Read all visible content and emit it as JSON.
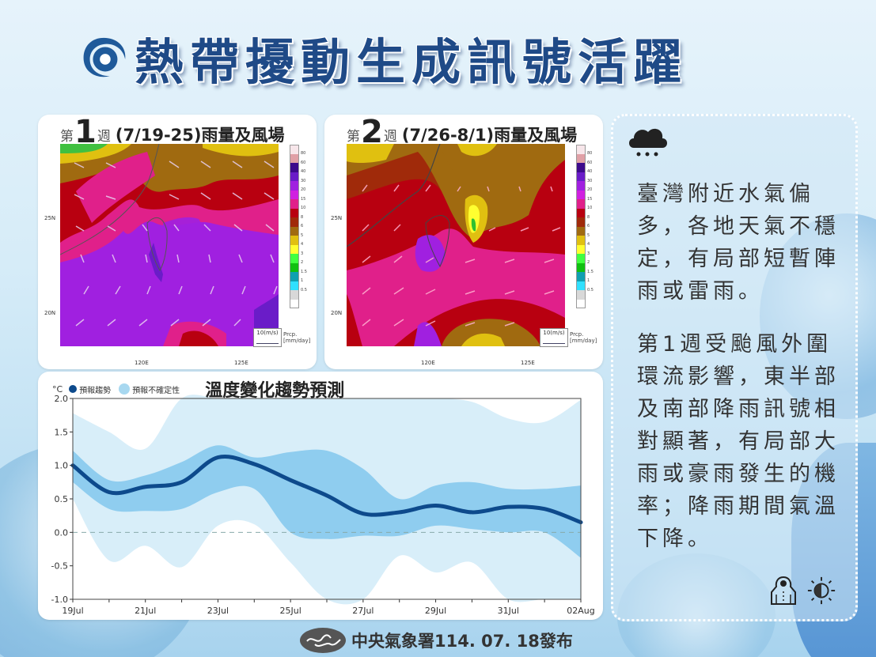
{
  "header": {
    "title": "熱帶擾動生成訊號活躍",
    "logo_icon": "typhoon-icon",
    "title_color": "#1f4a87"
  },
  "maps": [
    {
      "prefix": "第",
      "week_number": "1",
      "suffix": "週",
      "date_range": "(7/19-25)雨量及風場",
      "lat_labels": [
        "25N",
        "20N"
      ],
      "lon_labels": [
        "120E",
        "125E"
      ],
      "wind_reference": "10(m/s)",
      "colorbar_label_line1": "Prcp.",
      "colorbar_label_line2": "[mm/day]"
    },
    {
      "prefix": "第",
      "week_number": "2",
      "suffix": "週",
      "date_range": "(7/26-8/1)雨量及風場",
      "lat_labels": [
        "25N",
        "20N"
      ],
      "lon_labels": [
        "120E",
        "125E"
      ],
      "wind_reference": "10(m/s)",
      "colorbar_label_line1": "Prcp.",
      "colorbar_label_line2": "[mm/day]"
    }
  ],
  "colorbar": {
    "ticks": [
      "80",
      "60",
      "40",
      "30",
      "20",
      "15",
      "10",
      "8",
      "6",
      "5",
      "4",
      "3",
      "2",
      "1.5",
      "1",
      "0.5"
    ],
    "colors": [
      "#f7e6ea",
      "#e0a0a6",
      "#3d0a8c",
      "#6a1cc8",
      "#a020e0",
      "#d020e0",
      "#e0208a",
      "#b80010",
      "#a02a0a",
      "#a06a10",
      "#e0c010",
      "#ffff30",
      "#40ff40",
      "#10c010",
      "#10a0b0",
      "#30e0ff",
      "#d8d8d8",
      "#ffffff"
    ]
  },
  "chart_data": {
    "type": "line",
    "title": "溫度變化趨勢預測",
    "ylabel": "°C",
    "xlabel": "",
    "ylim": [
      -1.0,
      2.0
    ],
    "yticks": [
      "2.0",
      "1.5",
      "1.0",
      "0.5",
      "0.0",
      "-0.5",
      "-1.0"
    ],
    "x": [
      "19Jul",
      "20Jul",
      "21Jul",
      "22Jul",
      "23Jul",
      "24Jul",
      "25Jul",
      "26Jul",
      "27Jul",
      "28Jul",
      "29Jul",
      "30Jul",
      "31Jul",
      "01Aug",
      "02Aug"
    ],
    "xtick_labels": [
      "19Jul",
      "21Jul",
      "23Jul",
      "25Jul",
      "27Jul",
      "29Jul",
      "31Jul",
      "02Aug"
    ],
    "legend": [
      {
        "label": "預報趨勢",
        "color": "#0d4a8c"
      },
      {
        "label": "預報不確定性",
        "color": "#a8d8f0"
      }
    ],
    "series": [
      {
        "name": "預報趨勢",
        "values": [
          1.0,
          0.6,
          0.68,
          0.75,
          1.12,
          1.02,
          0.78,
          0.55,
          0.28,
          0.3,
          0.4,
          0.3,
          0.38,
          0.35,
          0.15
        ]
      },
      {
        "name": "inner_band_upper",
        "values": [
          1.22,
          0.78,
          0.85,
          1.05,
          1.3,
          1.12,
          1.2,
          1.22,
          0.95,
          0.5,
          0.7,
          0.75,
          0.65,
          0.65,
          0.7
        ]
      },
      {
        "name": "inner_band_lower",
        "values": [
          0.75,
          0.35,
          0.32,
          0.35,
          0.6,
          0.65,
          0.0,
          -0.1,
          -0.05,
          -0.05,
          0.1,
          0.05,
          0.0,
          0.0,
          -0.38
        ]
      },
      {
        "name": "outer_band_upper",
        "values": [
          1.78,
          1.5,
          1.25,
          2.0,
          2.0,
          2.0,
          2.0,
          2.0,
          2.0,
          2.0,
          2.0,
          1.95,
          1.7,
          1.65,
          1.98
        ]
      },
      {
        "name": "outer_band_lower",
        "values": [
          0.5,
          -0.42,
          -0.2,
          -0.52,
          0.1,
          0.12,
          -0.45,
          -1.0,
          -1.0,
          -0.35,
          -0.6,
          -0.45,
          -1.0,
          -1.0,
          -1.0
        ]
      }
    ],
    "reference_line": 0.0,
    "grid": false
  },
  "side_panel": {
    "weather_icon": "rain-cloud-icon",
    "paragraph1": "臺灣附近水氣偏多，各地天氣不穩定，有局部短暫陣雨或雷雨。",
    "paragraph2": "第1週受颱風外圍環流影響，東半部及南部降雨訊號相對顯著，有局部大雨或豪雨發生的機率；降雨期間氣溫下降。",
    "icons": [
      "raincoat-icon",
      "half-sun-icon"
    ]
  },
  "footer": {
    "text": "中央氣象署114. 07. 18發布",
    "logo_icon": "cwa-logo-icon"
  }
}
